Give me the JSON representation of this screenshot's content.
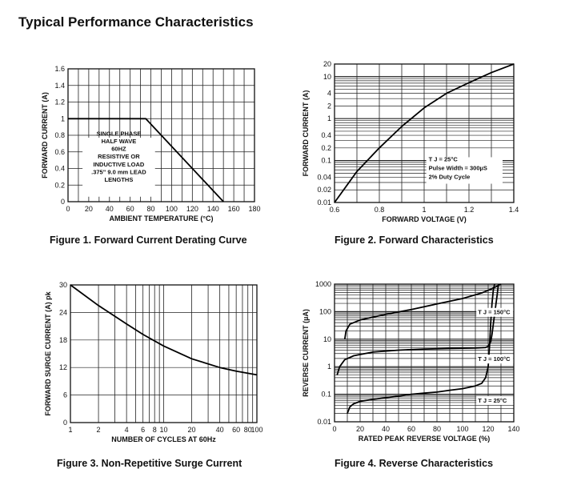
{
  "page_title": "Typical Performance Characteristics",
  "chart_data": [
    {
      "id": "fig1",
      "type": "line",
      "caption": "Figure 1. Forward Current Derating Curve",
      "xlabel": "AMBIENT TEMPERATURE (°C)",
      "ylabel": "FORWARD CURRENT (A)",
      "xscale": "linear",
      "yscale": "linear",
      "xlim": [
        0,
        180
      ],
      "ylim": [
        0,
        1.6
      ],
      "xticks": [
        0,
        20,
        40,
        60,
        80,
        100,
        120,
        140,
        160,
        180
      ],
      "xtick_labels": [
        "0",
        "20",
        "40",
        "60",
        "80",
        "100",
        "120",
        "140",
        "160",
        "180"
      ],
      "yticks": [
        0,
        0.2,
        0.4,
        0.6,
        0.8,
        1,
        1.2,
        1.4,
        1.6
      ],
      "ytick_labels": [
        "0",
        "0.2",
        "0.4",
        "0.6",
        "0.8",
        "1",
        "1.2",
        "1.4",
        "1.6"
      ],
      "grid": true,
      "series": [
        {
          "x": [
            0,
            75,
            150
          ],
          "y": [
            1.0,
            1.0,
            0.0
          ]
        }
      ],
      "annotation": [
        "SINGLE PHASE",
        "HALF WAVE",
        "60HZ",
        "RESISTIVE OR",
        "INDUCTIVE LOAD",
        ".375\" 9.0 mm LEAD",
        "LENGTHS"
      ]
    },
    {
      "id": "fig2",
      "type": "line",
      "caption": "Figure 2. Forward Characteristics",
      "xlabel": "FORWARD VOLTAGE (V)",
      "ylabel": "FORWARD CURRENT (A)",
      "xscale": "linear",
      "yscale": "log",
      "xlim": [
        0.6,
        1.4
      ],
      "ylim": [
        0.01,
        20
      ],
      "xticks": [
        0.6,
        0.8,
        1.0,
        1.2,
        1.4
      ],
      "xtick_labels": [
        "0.6",
        "0.8",
        "1",
        "1.2",
        "1.4"
      ],
      "yticks": [
        0.01,
        0.02,
        0.04,
        0.1,
        0.2,
        0.4,
        1,
        2,
        4,
        10,
        20
      ],
      "ytick_labels": [
        "0.01",
        "0.02",
        "0.04",
        "0.1",
        "0.2",
        "0.4",
        "1",
        "2",
        "4",
        "10",
        "20"
      ],
      "grid": true,
      "series": [
        {
          "x": [
            0.6,
            0.7,
            0.8,
            0.9,
            1.0,
            1.1,
            1.2,
            1.3,
            1.4
          ],
          "y": [
            0.01,
            0.055,
            0.2,
            0.65,
            1.8,
            4.0,
            7.2,
            12.5,
            20
          ]
        }
      ],
      "annotation": [
        "T J = 25°C",
        "Pulse Width = 300µS",
        "2% Duty Cycle"
      ]
    },
    {
      "id": "fig3",
      "type": "line",
      "caption": "Figure 3. Non-Repetitive Surge Current",
      "xlabel": "NUMBER OF CYCLES AT 60Hz",
      "ylabel": "FORWARD SURGE CURRENT (A) pk",
      "xscale": "log",
      "yscale": "linear",
      "xlim": [
        1,
        100
      ],
      "ylim": [
        0,
        30
      ],
      "xticks": [
        1,
        2,
        4,
        6,
        8,
        10,
        20,
        40,
        60,
        80,
        100
      ],
      "xtick_labels": [
        "1",
        "2",
        "4",
        "6",
        "8",
        "10",
        "20",
        "40",
        "60",
        "80",
        "100"
      ],
      "yticks": [
        0,
        6,
        12,
        18,
        24,
        30
      ],
      "ytick_labels": [
        "0",
        "6",
        "12",
        "18",
        "24",
        "30"
      ],
      "grid": true,
      "series": [
        {
          "x": [
            1,
            2,
            4,
            6,
            10,
            20,
            40,
            60,
            100
          ],
          "y": [
            30,
            25.5,
            21.5,
            19.2,
            16.7,
            13.9,
            12.0,
            11.2,
            10.4
          ]
        }
      ]
    },
    {
      "id": "fig4",
      "type": "line",
      "caption": "Figure 4. Reverse Characteristics",
      "xlabel": "RATED PEAK REVERSE VOLTAGE (%)",
      "ylabel": "REVERSE CURRENT (µA)",
      "xscale": "linear",
      "yscale": "log",
      "xlim": [
        0,
        140
      ],
      "ylim": [
        0.01,
        1000
      ],
      "xticks": [
        0,
        20,
        40,
        60,
        80,
        100,
        120,
        140
      ],
      "xtick_labels": [
        "0",
        "20",
        "40",
        "60",
        "80",
        "100",
        "120",
        "140"
      ],
      "yticks": [
        0.01,
        0.1,
        1,
        10,
        100,
        1000
      ],
      "ytick_labels": [
        "0.01",
        "0.1",
        "1",
        "10",
        "100",
        "1000"
      ],
      "grid": true,
      "series": [
        {
          "label": "T J = 150°C",
          "x": [
            8,
            9,
            12,
            20,
            40,
            60,
            80,
            100,
            115,
            122,
            126,
            130
          ],
          "y": [
            10,
            20,
            35,
            50,
            80,
            120,
            190,
            300,
            480,
            650,
            800,
            1000
          ]
        },
        {
          "label": "T J = 100°C",
          "x": [
            2,
            4,
            8,
            15,
            30,
            50,
            70,
            90,
            110,
            118,
            120,
            122,
            123,
            125,
            127,
            128
          ],
          "y": [
            0.5,
            1.0,
            1.8,
            2.5,
            3.4,
            4.0,
            4.4,
            4.6,
            4.8,
            5.0,
            5.5,
            8,
            15,
            80,
            400,
            1000
          ]
        },
        {
          "label": "T J = 25°C",
          "x": [
            10,
            12,
            15,
            20,
            30,
            40,
            50,
            60,
            70,
            80,
            90,
            100,
            110,
            115,
            118,
            120,
            121,
            122,
            123,
            124,
            125
          ],
          "y": [
            0.02,
            0.035,
            0.045,
            0.055,
            0.065,
            0.075,
            0.085,
            0.1,
            0.11,
            0.12,
            0.14,
            0.16,
            0.2,
            0.25,
            0.4,
            1.0,
            5,
            40,
            200,
            600,
            1000
          ]
        }
      ]
    }
  ]
}
